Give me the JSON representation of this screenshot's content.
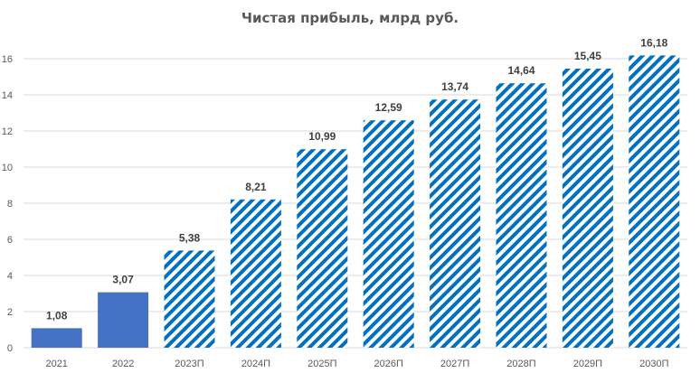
{
  "chart_data": {
    "type": "bar",
    "title": "Чистая прибыль, млрд руб.",
    "xlabel": "",
    "ylabel": "",
    "categories": [
      "2021",
      "2022",
      "2023П",
      "2024П",
      "2025П",
      "2026П",
      "2027П",
      "2028П",
      "2029П",
      "2030П"
    ],
    "values": [
      1.08,
      3.07,
      5.38,
      8.21,
      10.99,
      12.59,
      13.74,
      14.64,
      15.45,
      16.18
    ],
    "value_labels": [
      "1,08",
      "3,07",
      "5,38",
      "8,21",
      "10,99",
      "12,59",
      "13,74",
      "14,64",
      "15,45",
      "16,18"
    ],
    "forecast": [
      false,
      false,
      true,
      true,
      true,
      true,
      true,
      true,
      true,
      true
    ],
    "ylim": [
      0,
      16
    ],
    "yticks": [
      0,
      2,
      4,
      6,
      8,
      10,
      12,
      14,
      16
    ],
    "grid": true,
    "legend": "none",
    "colors": {
      "actual": "#4472C4",
      "forecast": "#0070C0",
      "grid": "#D9D9D9"
    }
  }
}
